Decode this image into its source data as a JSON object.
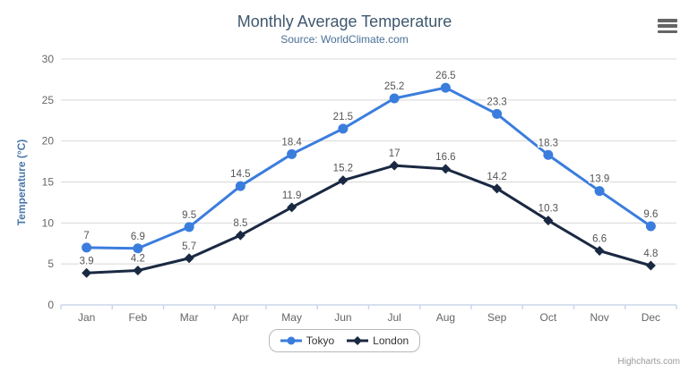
{
  "chart_data": {
    "type": "line",
    "title": "Monthly Average Temperature",
    "subtitle": "Source: WorldClimate.com",
    "xlabel": "",
    "ylabel": "Temperature (°C)",
    "ylim": [
      0,
      30
    ],
    "ytick_interval": 5,
    "grid": "horizontal",
    "legend_position": "bottom-center",
    "categories": [
      "Jan",
      "Feb",
      "Mar",
      "Apr",
      "May",
      "Jun",
      "Jul",
      "Aug",
      "Sep",
      "Oct",
      "Nov",
      "Dec"
    ],
    "series": [
      {
        "name": "Tokyo",
        "marker": "circle",
        "color": "#3b7ddd",
        "values": [
          7,
          6.9,
          9.5,
          14.5,
          18.4,
          21.5,
          25.2,
          26.5,
          23.3,
          18.3,
          13.9,
          9.6
        ]
      },
      {
        "name": "London",
        "marker": "diamond",
        "color": "#1a2942",
        "values": [
          3.9,
          4.2,
          5.7,
          8.5,
          11.9,
          15.2,
          17,
          16.6,
          14.2,
          10.3,
          6.6,
          4.8
        ]
      }
    ],
    "credits": "Highcharts.com"
  },
  "palette": {
    "grid_line": "#d8d8d8",
    "axis_line": "#ccd6eb",
    "axis_label": "#666666",
    "data_label": "#555555",
    "title": "#3e576f",
    "subtitle": "#4a6f96",
    "y_axis_title": "#4a77a8",
    "legend_text": "#333333",
    "credits_text": "#999999",
    "menu_icon": "#666666"
  },
  "icons": {
    "export_menu": "hamburger-icon"
  }
}
